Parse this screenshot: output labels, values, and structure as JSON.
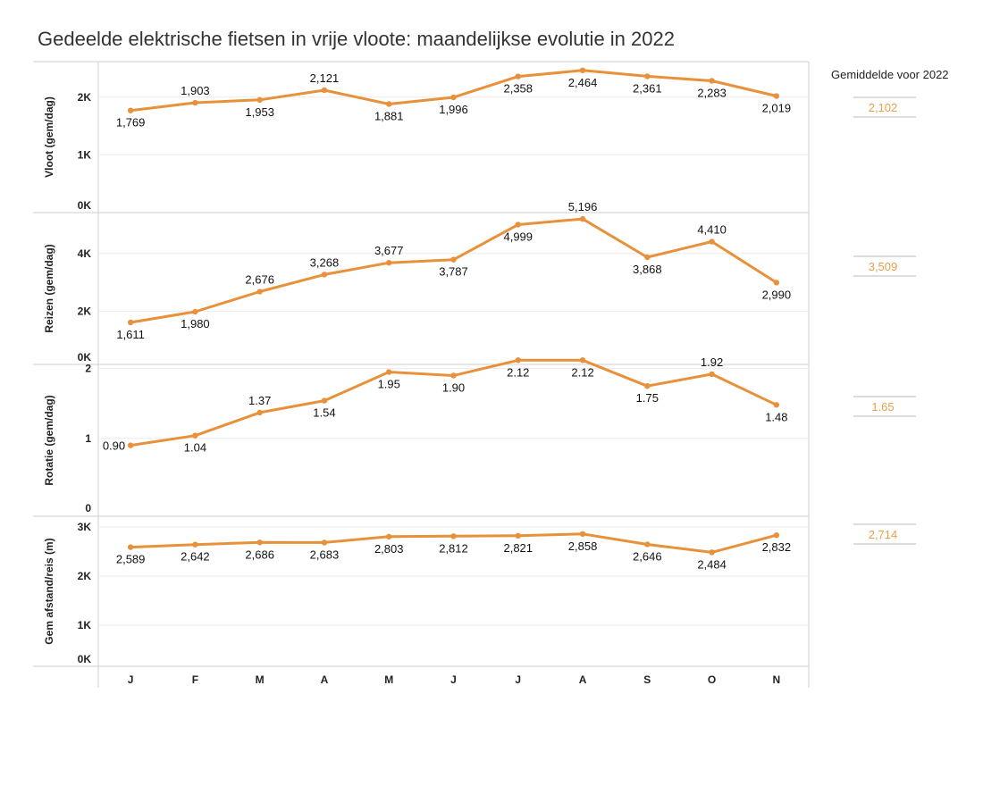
{
  "title": "Gedeelde elektrische fietsen in vrije vloote: maandelijkse evolutie in 2022",
  "avg_header": "Gemiddelde voor 2022",
  "colors": {
    "line": "#E8913A",
    "grid": "#EBEBEB",
    "border": "#CFCFCF",
    "avg_text": "#E8A04A"
  },
  "chart_data": {
    "type": "line",
    "categories": [
      "J",
      "F",
      "M",
      "A",
      "M",
      "J",
      "J",
      "A",
      "S",
      "O",
      "N"
    ],
    "panels": [
      {
        "ylabel": "Vloot (gem/dag)",
        "ylim": [
          0,
          2600
        ],
        "ticks": [
          0,
          1000,
          2000
        ],
        "tick_labels": [
          "0K",
          "1K",
          "2K"
        ],
        "values": [
          1769,
          1903,
          1953,
          2121,
          1881,
          1996,
          2358,
          2464,
          2361,
          2283,
          2019
        ],
        "labels": [
          "1,769",
          "1,903",
          "1,953",
          "2,121",
          "1,881",
          "1,996",
          "2,358",
          "2,464",
          "2,361",
          "2,283",
          "2,019"
        ],
        "label_pos": [
          "below",
          "above",
          "below",
          "above",
          "below",
          "below",
          "below",
          "below",
          "below",
          "below",
          "below"
        ],
        "average": 2102,
        "average_label": "2,102"
      },
      {
        "ylabel": "Reizen (gem/dag)",
        "ylim": [
          0,
          5200
        ],
        "ticks": [
          0,
          2000,
          4000
        ],
        "tick_labels": [
          "0K",
          "2K",
          "4K"
        ],
        "values": [
          1611,
          1980,
          2676,
          3268,
          3677,
          3787,
          4999,
          5196,
          3868,
          4410,
          2990
        ],
        "labels": [
          "1,611",
          "1,980",
          "2,676",
          "3,268",
          "3,677",
          "3,787",
          "4,999",
          "5,196",
          "3,868",
          "4,410",
          "2,990"
        ],
        "label_pos": [
          "below",
          "below",
          "above",
          "above",
          "above",
          "below",
          "below",
          "above",
          "below",
          "above",
          "below"
        ],
        "average": 3509,
        "average_label": "3,509"
      },
      {
        "ylabel": "Rotatie (gem/dag)",
        "ylim": [
          0,
          2.2
        ],
        "ticks": [
          0,
          1,
          2
        ],
        "tick_labels": [
          "0",
          "1",
          "2"
        ],
        "values": [
          0.9,
          1.04,
          1.37,
          1.54,
          1.95,
          1.9,
          2.12,
          2.12,
          1.75,
          1.92,
          1.48
        ],
        "labels": [
          "0.90",
          "1.04",
          "1.37",
          "1.54",
          "1.95",
          "1.90",
          "2.12",
          "2.12",
          "1.75",
          "1.92",
          "1.48"
        ],
        "label_pos": [
          "left",
          "below",
          "above",
          "below",
          "below",
          "below",
          "below",
          "below",
          "below",
          "above",
          "below"
        ],
        "average": 1.65,
        "average_label": "1.65"
      },
      {
        "ylabel": "Gem afstand/reis (m)",
        "ylim": [
          0,
          3000
        ],
        "ticks": [
          0,
          1000,
          2000,
          3000
        ],
        "tick_labels": [
          "0K",
          "1K",
          "2K",
          "3K"
        ],
        "values": [
          2589,
          2642,
          2686,
          2683,
          2803,
          2812,
          2821,
          2858,
          2646,
          2484,
          2832
        ],
        "labels": [
          "2,589",
          "2,642",
          "2,686",
          "2,683",
          "2,803",
          "2,812",
          "2,821",
          "2,858",
          "2,646",
          "2,484",
          "2,832"
        ],
        "label_pos": [
          "below",
          "below",
          "below",
          "below",
          "below",
          "below",
          "below",
          "below",
          "below",
          "below",
          "below"
        ],
        "average": 2714,
        "average_label": "2,714"
      }
    ]
  }
}
